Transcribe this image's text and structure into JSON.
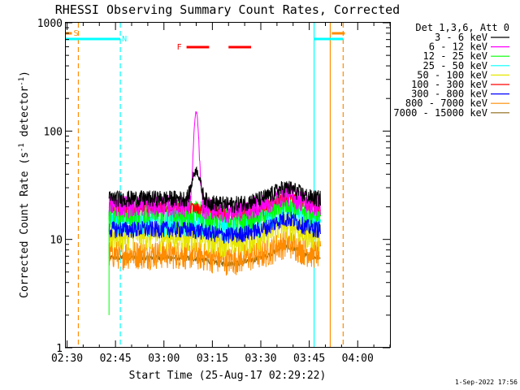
{
  "chart_data": {
    "type": "line",
    "title": "RHESSI Observing Summary Count Rates, Corrected",
    "xlabel": "Start Time (25-Aug-17 02:29:22)",
    "ylabel_main": "Corrected Count Rate (s",
    "ylabel_mid": " detector",
    "ylabel_sup": "-1",
    "ylabel_close": ")",
    "x_ticks": [
      "02:30",
      "02:45",
      "03:00",
      "03:15",
      "03:30",
      "03:45",
      "04:00"
    ],
    "y_ticks": [
      "1",
      "10",
      "100",
      "1000"
    ],
    "xlim": [
      "02:29:22",
      "04:10"
    ],
    "ylim": [
      1,
      1000
    ],
    "yscale": "log",
    "grid": false,
    "legend_title": "Det 1,3,6, Att 0",
    "legend_position": "right",
    "series": [
      {
        "name": "3 - 6 keV",
        "color": "#000000",
        "base": 24,
        "amp": 0.06
      },
      {
        "name": "6 - 12 keV",
        "color": "#ff00ff",
        "base": 21,
        "amp": 0.08
      },
      {
        "name": "12 - 25 keV",
        "color": "#00ff00",
        "base": 18,
        "amp": 0.1
      },
      {
        "name": "25 - 50 keV",
        "color": "#00ffff",
        "base": 15,
        "amp": 0.1
      },
      {
        "name": "50 - 100 keV",
        "color": "#e6e600",
        "base": 11,
        "amp": 0.1
      },
      {
        "name": "100 - 300 keV",
        "color": "#ff0000",
        "base": 20,
        "amp": 0.04
      },
      {
        "name": "300 - 800 keV",
        "color": "#0000ff",
        "base": 12.5,
        "amp": 0.06
      },
      {
        "name": "800 - 7000 keV",
        "color": "#ff8c00",
        "base": 7.5,
        "amp": 0.1
      },
      {
        "name": "7000 - 15000 keV",
        "color": "#8b6914",
        "base": 6.8,
        "amp": 0.02
      }
    ],
    "flare_peak": {
      "time": "03:10",
      "series": "6 - 12 keV",
      "value": 150
    },
    "annotations": [
      {
        "label": "S",
        "color": "#ff8c00"
      },
      {
        "label": "N",
        "color": "#00ffff"
      },
      {
        "label": "F",
        "color": "#ff0000"
      }
    ],
    "footer_date": "1-Sep-2022 17:56"
  }
}
